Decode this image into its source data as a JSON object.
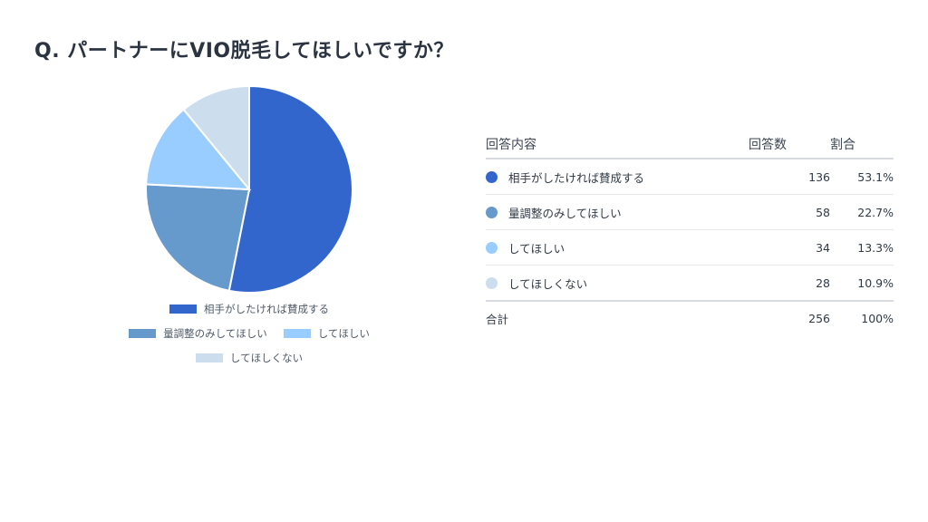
{
  "title": "Q. パートナーにVIO脱毛してほしいですか？",
  "chart_data": {
    "type": "pie",
    "labels": [
      "相手がしたければ賛成する",
      "量調整のみしてほしい",
      "してほしい",
      "してほしくない"
    ],
    "values": [
      136,
      58,
      34,
      28
    ],
    "colors": [
      "#3366cc",
      "#6699cc",
      "#99ccff",
      "#ccdded"
    ],
    "legend_position": "bottom"
  },
  "table": {
    "headers": {
      "answer": "回答内容",
      "count": "回答数",
      "ratio": "割合"
    },
    "rows": [
      {
        "label": "相手がしたければ賛成する",
        "count": "136",
        "ratio": "53.1%",
        "color": "#3366cc"
      },
      {
        "label": "量調整のみしてほしい",
        "count": "58",
        "ratio": "22.7%",
        "color": "#6699cc"
      },
      {
        "label": "してほしい",
        "count": "34",
        "ratio": "13.3%",
        "color": "#99ccff"
      },
      {
        "label": "してほしくない",
        "count": "28",
        "ratio": "10.9%",
        "color": "#ccdded"
      }
    ],
    "total": {
      "label": "合計",
      "count": "256",
      "ratio": "100%"
    }
  }
}
